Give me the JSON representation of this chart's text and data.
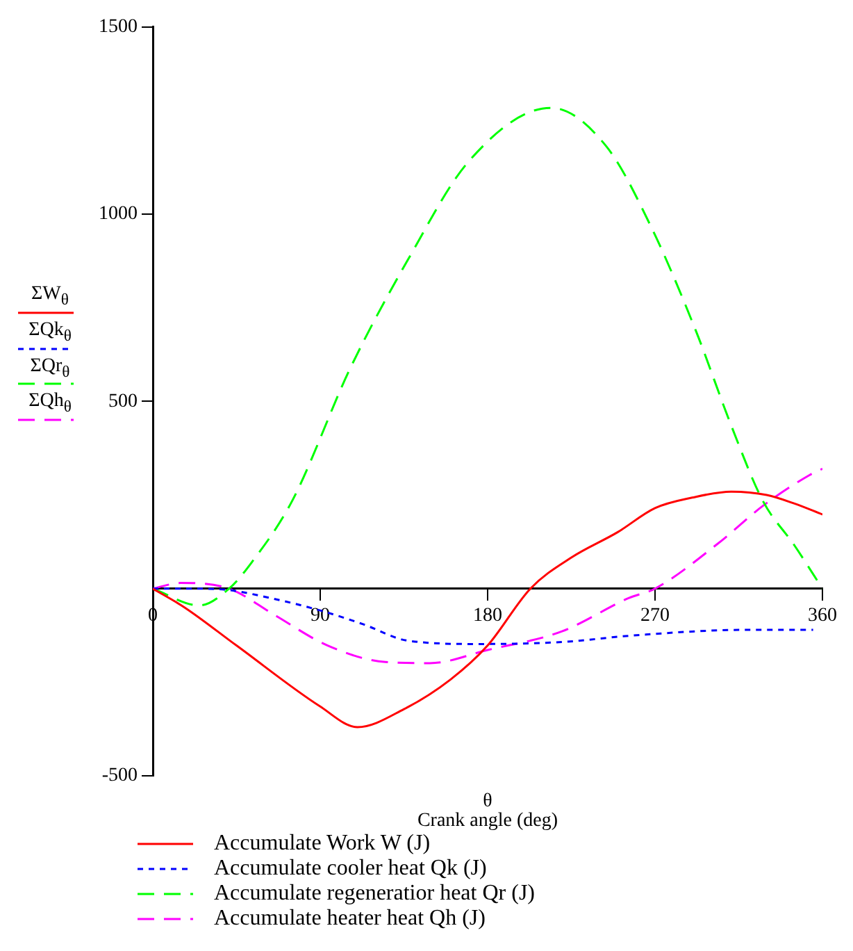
{
  "chart_data": {
    "type": "line",
    "xlabel": "θ\nCrank angle (deg)",
    "ylabel": "ΣW$_{θ}$\nΣQk$_{θ}$\nΣQr$_{θ}$\nΣQh$_{θ}$",
    "xlim": [
      0,
      360
    ],
    "xticks": [
      0,
      90,
      180,
      270,
      360
    ],
    "ylim": [
      -500,
      1500
    ],
    "yticks": [
      -500,
      500,
      1000,
      1500
    ],
    "legend": "bottom",
    "series": [
      {
        "name": "Accumulate Work W (J)",
        "color": "#ff0000",
        "line_style": "solid",
        "x": [
          0,
          17,
          45,
          90,
          110,
          135,
          160,
          180,
          203,
          225,
          250,
          270,
          290,
          311,
          330,
          345,
          360
        ],
        "values": [
          0,
          -50,
          -152,
          -315,
          -370,
          -322,
          -243,
          -152,
          0,
          83,
          151,
          215,
          243,
          259,
          250,
          227,
          198
        ]
      },
      {
        "name": "Accumulate cooler heat Qk (J)",
        "color": "#0000ff",
        "line_style": "dotted",
        "x": [
          0,
          20,
          41,
          63,
          89,
          113,
          137,
          175,
          222,
          256,
          320,
          355
        ],
        "values": [
          0,
          0,
          -4,
          -25,
          -57,
          -95,
          -139,
          -148,
          -142,
          -126,
          -110,
          -110
        ]
      },
      {
        "name": "Accumulate regeneratior heat Qr (J)",
        "color": "#00ff00",
        "line_style": "dashed",
        "x": [
          0,
          25,
          41,
          53,
          75,
          106,
          137,
          170,
          214,
          244,
          268,
          292,
          311,
          328,
          345,
          360
        ],
        "values": [
          0,
          -45,
          0,
          69,
          235,
          587,
          877,
          1142,
          1284,
          1180,
          965,
          688,
          435,
          234,
          115,
          0
        ]
      },
      {
        "name": "Accumulate heater heat Qh (J)",
        "color": "#ff00ff",
        "line_style": "dashed",
        "x": [
          0,
          15,
          41,
          65,
          94,
          125,
          149,
          180,
          220,
          256,
          270,
          304,
          328,
          353,
          360
        ],
        "values": [
          0,
          15,
          0,
          -69,
          -152,
          -196,
          -199,
          -164,
          -114,
          -25,
          0,
          121,
          221,
          303,
          320
        ]
      }
    ]
  }
}
